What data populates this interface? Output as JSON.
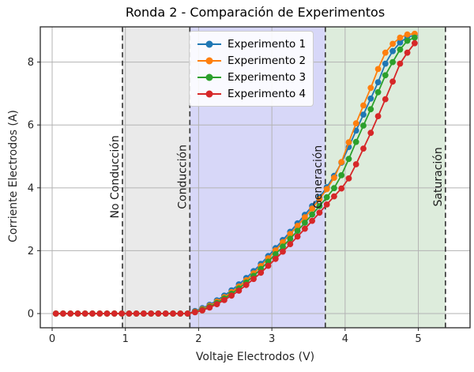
{
  "figure": {
    "background": "#ffffff",
    "frame_color": "#262626",
    "grid_color": "#b3b3b3",
    "tick_color": "#262626",
    "boundary_line_color": "#3c3c3c",
    "boundary_line_style": "dashed"
  },
  "legend": {
    "marker_icon": "line-with-dot",
    "position": "upper center-left"
  },
  "chart_data": {
    "type": "line",
    "title": "Ronda 2 - Comparación de Experimentos",
    "xlabel": "Voltaje Electrodos (V)",
    "ylabel": "Corriente Electrodos (A)",
    "xlim": [
      -0.162,
      5.706
    ],
    "ylim": [
      -0.452,
      9.121
    ],
    "xticks": [
      0,
      1,
      2,
      3,
      4,
      5
    ],
    "yticks": [
      0,
      2,
      4,
      6,
      8
    ],
    "grid": true,
    "marker": "circle",
    "x": [
      0.05,
      0.15,
      0.25,
      0.35,
      0.45,
      0.55,
      0.65,
      0.75,
      0.85,
      0.95,
      1.05,
      1.15,
      1.25,
      1.35,
      1.45,
      1.55,
      1.65,
      1.75,
      1.85,
      1.95,
      2.05,
      2.15,
      2.25,
      2.35,
      2.45,
      2.55,
      2.65,
      2.75,
      2.85,
      2.95,
      3.05,
      3.15,
      3.25,
      3.35,
      3.45,
      3.55,
      3.65,
      3.75,
      3.85,
      3.95,
      4.05,
      4.15,
      4.25,
      4.35,
      4.45,
      4.55,
      4.65,
      4.75,
      4.85,
      4.95
    ],
    "series": [
      {
        "name": "Experimento 1",
        "color": "#1f77b4",
        "values": [
          0,
          0,
          0,
          0,
          0,
          0,
          0,
          0,
          0,
          0,
          0,
          0,
          0,
          0,
          0,
          0,
          0,
          0,
          0,
          0.08,
          0.17,
          0.28,
          0.42,
          0.57,
          0.74,
          0.93,
          1.13,
          1.35,
          1.58,
          1.83,
          2.08,
          2.34,
          2.6,
          2.87,
          3.14,
          3.42,
          3.7,
          4.02,
          4.38,
          4.8,
          5.3,
          5.82,
          6.33,
          6.84,
          7.36,
          7.95,
          8.35,
          8.62,
          8.8,
          8.85
        ]
      },
      {
        "name": "Experimento 2",
        "color": "#ff7f0e",
        "values": [
          0,
          0,
          0,
          0,
          0,
          0,
          0,
          0,
          0,
          0,
          0,
          0,
          0,
          0,
          0,
          0,
          0,
          0,
          0,
          0.06,
          0.14,
          0.25,
          0.38,
          0.52,
          0.68,
          0.86,
          1.06,
          1.28,
          1.51,
          1.76,
          2.01,
          2.27,
          2.53,
          2.79,
          3.06,
          3.34,
          3.64,
          3.96,
          4.32,
          4.82,
          5.45,
          6.05,
          6.62,
          7.18,
          7.78,
          8.3,
          8.58,
          8.78,
          8.88,
          8.9
        ]
      },
      {
        "name": "Experimento 3",
        "color": "#2ca02c",
        "values": [
          0,
          0,
          0,
          0,
          0,
          0,
          0,
          0,
          0,
          0,
          0,
          0,
          0,
          0,
          0,
          0,
          0,
          0,
          0,
          0.05,
          0.12,
          0.22,
          0.34,
          0.48,
          0.63,
          0.8,
          0.99,
          1.2,
          1.42,
          1.65,
          1.89,
          2.13,
          2.38,
          2.63,
          2.89,
          3.15,
          3.42,
          3.7,
          3.99,
          4.4,
          4.92,
          5.46,
          5.98,
          6.5,
          7.04,
          7.58,
          8.0,
          8.4,
          8.68,
          8.78
        ]
      },
      {
        "name": "Experimento 4",
        "color": "#d62728",
        "values": [
          0,
          0,
          0,
          0,
          0,
          0,
          0,
          0,
          0,
          0,
          0,
          0,
          0,
          0,
          0,
          0,
          0,
          0,
          0,
          0.04,
          0.1,
          0.19,
          0.3,
          0.43,
          0.57,
          0.73,
          0.91,
          1.1,
          1.3,
          1.52,
          1.74,
          1.97,
          2.21,
          2.45,
          2.7,
          2.95,
          3.21,
          3.47,
          3.73,
          3.98,
          4.3,
          4.75,
          5.25,
          5.75,
          6.28,
          6.82,
          7.38,
          7.95,
          8.3,
          8.6
        ]
      }
    ],
    "regions": [
      {
        "label": "No Conducción",
        "start": null,
        "end": 0.96,
        "fill": "none"
      },
      {
        "label": "Conducción",
        "start": 0.96,
        "end": 1.88,
        "fill": "#eaeaea"
      },
      {
        "label": "Generación",
        "start": 1.88,
        "end": 3.73,
        "fill": "#d7d7f8"
      },
      {
        "label": "Saturación",
        "start": 3.73,
        "end": 5.37,
        "fill": "#ddecdc"
      }
    ],
    "boundary_lines": [
      0.96,
      1.88,
      3.73,
      5.37
    ]
  }
}
